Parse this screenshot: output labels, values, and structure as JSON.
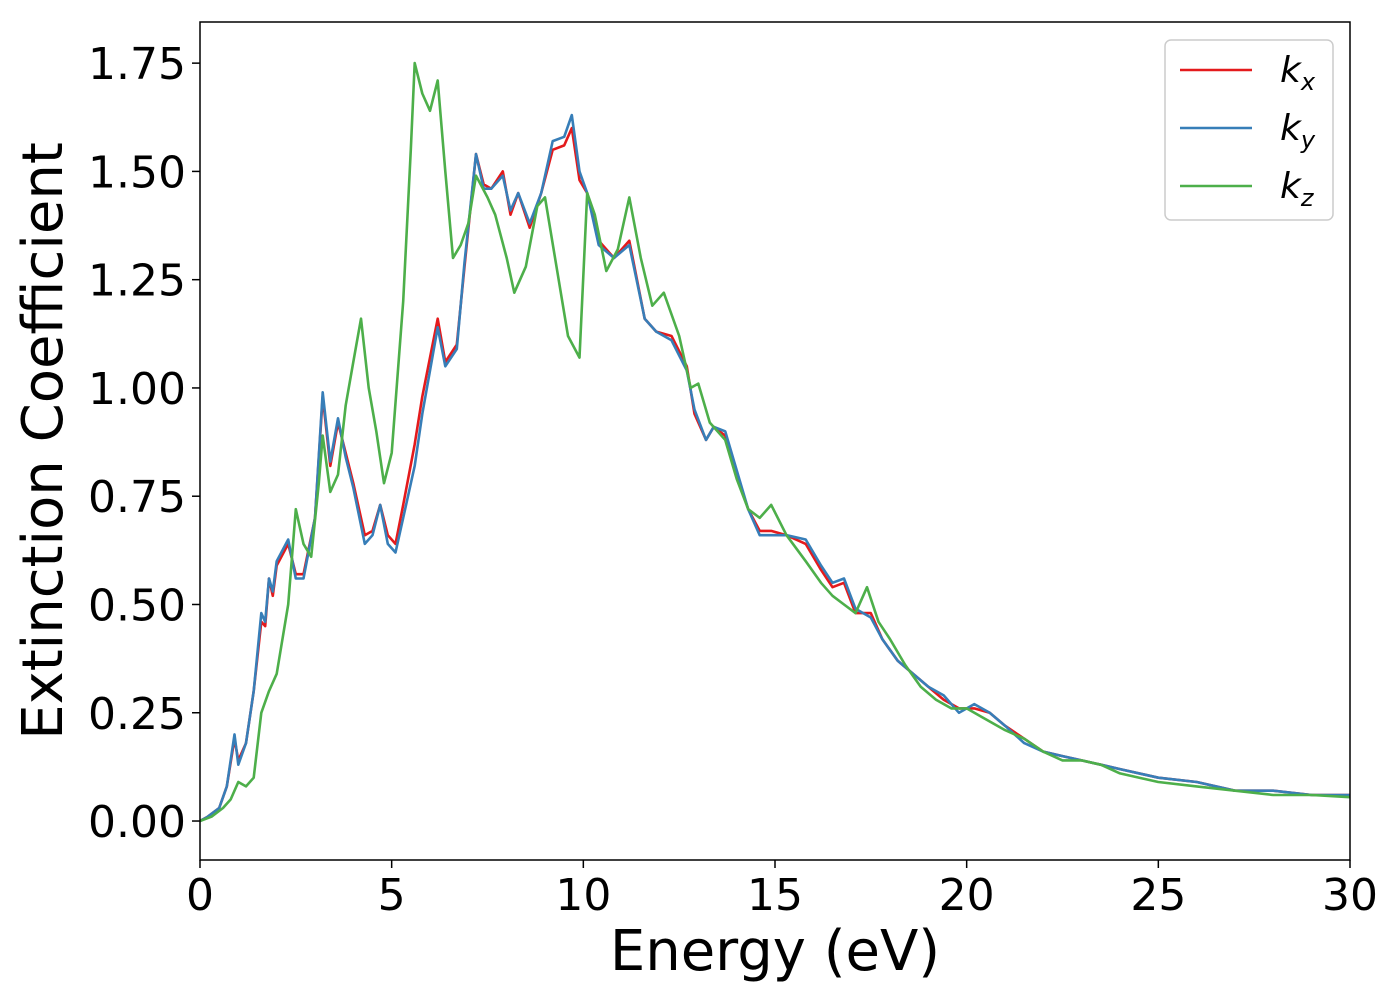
{
  "chart_data": {
    "type": "line",
    "xlabel": "Energy (eV)",
    "ylabel": "Extinction Coefficient",
    "xlim": [
      0,
      30
    ],
    "ylim": [
      -0.09,
      1.845
    ],
    "xticks": [
      0,
      5,
      10,
      15,
      20,
      25,
      30
    ],
    "xtick_labels": [
      "0",
      "5",
      "10",
      "15",
      "20",
      "25",
      "30"
    ],
    "yticks": [
      0,
      0.25,
      0.5,
      0.75,
      1.0,
      1.25,
      1.5,
      1.75
    ],
    "ytick_labels": [
      "0.00",
      "0.25",
      "0.50",
      "0.75",
      "1.00",
      "1.25",
      "1.50",
      "1.75"
    ],
    "grid": false,
    "legend_position": "top-right",
    "series": [
      {
        "name": "k_x",
        "label_main": "k",
        "label_sub": "x",
        "color": "#e41a1c",
        "points": [
          [
            0,
            0.0
          ],
          [
            0.2,
            0.01
          ],
          [
            0.5,
            0.03
          ],
          [
            0.7,
            0.08
          ],
          [
            0.9,
            0.19
          ],
          [
            1.0,
            0.14
          ],
          [
            1.2,
            0.18
          ],
          [
            1.4,
            0.3
          ],
          [
            1.6,
            0.46
          ],
          [
            1.7,
            0.45
          ],
          [
            1.8,
            0.56
          ],
          [
            1.9,
            0.52
          ],
          [
            2.0,
            0.59
          ],
          [
            2.3,
            0.64
          ],
          [
            2.5,
            0.57
          ],
          [
            2.7,
            0.57
          ],
          [
            3.0,
            0.7
          ],
          [
            3.2,
            0.98
          ],
          [
            3.4,
            0.82
          ],
          [
            3.6,
            0.92
          ],
          [
            3.8,
            0.85
          ],
          [
            4.0,
            0.78
          ],
          [
            4.3,
            0.66
          ],
          [
            4.5,
            0.67
          ],
          [
            4.7,
            0.73
          ],
          [
            4.9,
            0.66
          ],
          [
            5.1,
            0.64
          ],
          [
            5.3,
            0.73
          ],
          [
            5.6,
            0.87
          ],
          [
            5.8,
            0.98
          ],
          [
            6.0,
            1.07
          ],
          [
            6.2,
            1.16
          ],
          [
            6.4,
            1.06
          ],
          [
            6.7,
            1.1
          ],
          [
            6.9,
            1.28
          ],
          [
            7.2,
            1.54
          ],
          [
            7.4,
            1.47
          ],
          [
            7.6,
            1.46
          ],
          [
            7.9,
            1.5
          ],
          [
            8.1,
            1.4
          ],
          [
            8.3,
            1.45
          ],
          [
            8.6,
            1.37
          ],
          [
            8.9,
            1.45
          ],
          [
            9.2,
            1.55
          ],
          [
            9.5,
            1.56
          ],
          [
            9.7,
            1.6
          ],
          [
            9.9,
            1.48
          ],
          [
            10.1,
            1.45
          ],
          [
            10.4,
            1.34
          ],
          [
            10.8,
            1.3
          ],
          [
            11.2,
            1.34
          ],
          [
            11.6,
            1.16
          ],
          [
            11.9,
            1.13
          ],
          [
            12.3,
            1.12
          ],
          [
            12.7,
            1.05
          ],
          [
            12.9,
            0.94
          ],
          [
            13.2,
            0.88
          ],
          [
            13.4,
            0.91
          ],
          [
            13.7,
            0.89
          ],
          [
            14.0,
            0.8
          ],
          [
            14.3,
            0.72
          ],
          [
            14.6,
            0.67
          ],
          [
            14.9,
            0.67
          ],
          [
            15.3,
            0.66
          ],
          [
            15.8,
            0.64
          ],
          [
            16.2,
            0.58
          ],
          [
            16.5,
            0.54
          ],
          [
            16.8,
            0.55
          ],
          [
            17.1,
            0.48
          ],
          [
            17.5,
            0.48
          ],
          [
            17.8,
            0.42
          ],
          [
            18.2,
            0.37
          ],
          [
            18.6,
            0.34
          ],
          [
            19.0,
            0.31
          ],
          [
            19.4,
            0.28
          ],
          [
            19.8,
            0.26
          ],
          [
            20.2,
            0.26
          ],
          [
            20.6,
            0.25
          ],
          [
            21.0,
            0.22
          ],
          [
            21.5,
            0.19
          ],
          [
            22.0,
            0.16
          ],
          [
            22.5,
            0.15
          ],
          [
            23.0,
            0.14
          ],
          [
            23.5,
            0.13
          ],
          [
            24.0,
            0.12
          ],
          [
            25.0,
            0.1
          ],
          [
            26.0,
            0.09
          ],
          [
            27.0,
            0.07
          ],
          [
            28.0,
            0.07
          ],
          [
            29.0,
            0.06
          ],
          [
            30.0,
            0.06
          ]
        ]
      },
      {
        "name": "k_y",
        "label_main": "k",
        "label_sub": "y",
        "color": "#377eb8",
        "points": [
          [
            0,
            0.0
          ],
          [
            0.2,
            0.01
          ],
          [
            0.5,
            0.03
          ],
          [
            0.7,
            0.08
          ],
          [
            0.9,
            0.2
          ],
          [
            1.0,
            0.13
          ],
          [
            1.2,
            0.18
          ],
          [
            1.4,
            0.3
          ],
          [
            1.6,
            0.48
          ],
          [
            1.7,
            0.46
          ],
          [
            1.8,
            0.56
          ],
          [
            1.9,
            0.53
          ],
          [
            2.0,
            0.6
          ],
          [
            2.3,
            0.65
          ],
          [
            2.5,
            0.56
          ],
          [
            2.7,
            0.56
          ],
          [
            3.0,
            0.7
          ],
          [
            3.2,
            0.99
          ],
          [
            3.4,
            0.83
          ],
          [
            3.6,
            0.93
          ],
          [
            3.8,
            0.84
          ],
          [
            4.0,
            0.77
          ],
          [
            4.3,
            0.64
          ],
          [
            4.5,
            0.66
          ],
          [
            4.7,
            0.73
          ],
          [
            4.9,
            0.64
          ],
          [
            5.1,
            0.62
          ],
          [
            5.3,
            0.7
          ],
          [
            5.6,
            0.82
          ],
          [
            5.8,
            0.94
          ],
          [
            6.0,
            1.04
          ],
          [
            6.2,
            1.14
          ],
          [
            6.4,
            1.05
          ],
          [
            6.7,
            1.09
          ],
          [
            6.9,
            1.29
          ],
          [
            7.2,
            1.54
          ],
          [
            7.4,
            1.46
          ],
          [
            7.6,
            1.46
          ],
          [
            7.9,
            1.49
          ],
          [
            8.1,
            1.41
          ],
          [
            8.3,
            1.45
          ],
          [
            8.6,
            1.38
          ],
          [
            8.9,
            1.45
          ],
          [
            9.2,
            1.57
          ],
          [
            9.5,
            1.58
          ],
          [
            9.7,
            1.63
          ],
          [
            9.9,
            1.5
          ],
          [
            10.1,
            1.45
          ],
          [
            10.4,
            1.33
          ],
          [
            10.8,
            1.3
          ],
          [
            11.2,
            1.33
          ],
          [
            11.6,
            1.16
          ],
          [
            11.9,
            1.13
          ],
          [
            12.3,
            1.11
          ],
          [
            12.7,
            1.04
          ],
          [
            12.9,
            0.95
          ],
          [
            13.2,
            0.88
          ],
          [
            13.4,
            0.91
          ],
          [
            13.7,
            0.9
          ],
          [
            14.0,
            0.81
          ],
          [
            14.3,
            0.72
          ],
          [
            14.6,
            0.66
          ],
          [
            14.9,
            0.66
          ],
          [
            15.3,
            0.66
          ],
          [
            15.8,
            0.65
          ],
          [
            16.2,
            0.59
          ],
          [
            16.5,
            0.55
          ],
          [
            16.8,
            0.56
          ],
          [
            17.1,
            0.49
          ],
          [
            17.5,
            0.47
          ],
          [
            17.8,
            0.42
          ],
          [
            18.2,
            0.37
          ],
          [
            18.6,
            0.34
          ],
          [
            19.0,
            0.31
          ],
          [
            19.4,
            0.29
          ],
          [
            19.8,
            0.25
          ],
          [
            20.2,
            0.27
          ],
          [
            20.6,
            0.25
          ],
          [
            21.0,
            0.22
          ],
          [
            21.5,
            0.18
          ],
          [
            22.0,
            0.16
          ],
          [
            22.5,
            0.15
          ],
          [
            23.0,
            0.14
          ],
          [
            23.5,
            0.13
          ],
          [
            24.0,
            0.12
          ],
          [
            25.0,
            0.1
          ],
          [
            26.0,
            0.09
          ],
          [
            27.0,
            0.07
          ],
          [
            28.0,
            0.07
          ],
          [
            29.0,
            0.06
          ],
          [
            30.0,
            0.06
          ]
        ]
      },
      {
        "name": "k_z",
        "label_main": "k",
        "label_sub": "z",
        "color": "#4daf4a",
        "points": [
          [
            0,
            0.0
          ],
          [
            0.3,
            0.01
          ],
          [
            0.6,
            0.03
          ],
          [
            0.8,
            0.05
          ],
          [
            1.0,
            0.09
          ],
          [
            1.2,
            0.08
          ],
          [
            1.4,
            0.1
          ],
          [
            1.6,
            0.25
          ],
          [
            1.8,
            0.3
          ],
          [
            2.0,
            0.34
          ],
          [
            2.3,
            0.5
          ],
          [
            2.5,
            0.72
          ],
          [
            2.7,
            0.64
          ],
          [
            2.9,
            0.61
          ],
          [
            3.1,
            0.78
          ],
          [
            3.2,
            0.89
          ],
          [
            3.4,
            0.76
          ],
          [
            3.6,
            0.8
          ],
          [
            3.8,
            0.96
          ],
          [
            4.0,
            1.06
          ],
          [
            4.2,
            1.16
          ],
          [
            4.4,
            1.0
          ],
          [
            4.6,
            0.9
          ],
          [
            4.8,
            0.78
          ],
          [
            5.0,
            0.85
          ],
          [
            5.3,
            1.2
          ],
          [
            5.5,
            1.55
          ],
          [
            5.6,
            1.75
          ],
          [
            5.8,
            1.68
          ],
          [
            6.0,
            1.64
          ],
          [
            6.2,
            1.71
          ],
          [
            6.4,
            1.5
          ],
          [
            6.6,
            1.3
          ],
          [
            6.8,
            1.33
          ],
          [
            7.0,
            1.38
          ],
          [
            7.2,
            1.49
          ],
          [
            7.5,
            1.44
          ],
          [
            7.7,
            1.4
          ],
          [
            8.0,
            1.3
          ],
          [
            8.2,
            1.22
          ],
          [
            8.5,
            1.28
          ],
          [
            8.8,
            1.42
          ],
          [
            9.0,
            1.44
          ],
          [
            9.3,
            1.28
          ],
          [
            9.6,
            1.12
          ],
          [
            9.9,
            1.07
          ],
          [
            10.1,
            1.45
          ],
          [
            10.3,
            1.4
          ],
          [
            10.6,
            1.27
          ],
          [
            10.9,
            1.32
          ],
          [
            11.2,
            1.44
          ],
          [
            11.5,
            1.3
          ],
          [
            11.8,
            1.19
          ],
          [
            12.1,
            1.22
          ],
          [
            12.5,
            1.12
          ],
          [
            12.8,
            1.0
          ],
          [
            13.0,
            1.01
          ],
          [
            13.3,
            0.92
          ],
          [
            13.7,
            0.88
          ],
          [
            14.0,
            0.79
          ],
          [
            14.3,
            0.72
          ],
          [
            14.6,
            0.7
          ],
          [
            14.9,
            0.73
          ],
          [
            15.3,
            0.66
          ],
          [
            15.8,
            0.6
          ],
          [
            16.2,
            0.55
          ],
          [
            16.5,
            0.52
          ],
          [
            16.8,
            0.5
          ],
          [
            17.1,
            0.48
          ],
          [
            17.4,
            0.54
          ],
          [
            17.7,
            0.46
          ],
          [
            18.0,
            0.42
          ],
          [
            18.4,
            0.36
          ],
          [
            18.8,
            0.31
          ],
          [
            19.2,
            0.28
          ],
          [
            19.6,
            0.26
          ],
          [
            20.0,
            0.26
          ],
          [
            20.4,
            0.24
          ],
          [
            21.0,
            0.21
          ],
          [
            21.5,
            0.19
          ],
          [
            22.0,
            0.16
          ],
          [
            22.5,
            0.14
          ],
          [
            23.0,
            0.14
          ],
          [
            23.5,
            0.13
          ],
          [
            24.0,
            0.11
          ],
          [
            25.0,
            0.09
          ],
          [
            26.0,
            0.08
          ],
          [
            27.0,
            0.07
          ],
          [
            28.0,
            0.06
          ],
          [
            29.0,
            0.06
          ],
          [
            30.0,
            0.055
          ]
        ]
      }
    ]
  }
}
